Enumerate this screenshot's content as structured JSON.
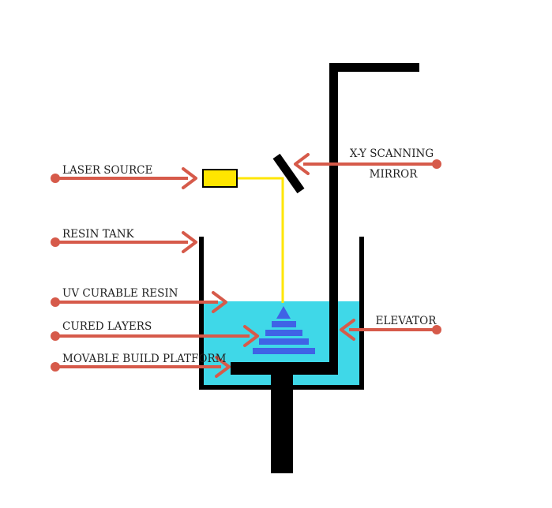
{
  "labels": {
    "laser_source": "LASER SOURCE",
    "resin_tank": "RESIN TANK",
    "uv_curable_resin": "UV CURABLE RESIN",
    "cured_layers": "CURED LAYERS",
    "movable_build_platform": "MOVABLE BUILD PLATFORM",
    "xy_scanning_line1": "X-Y SCANNING",
    "xy_scanning_line2": "MIRROR",
    "elevator": "ELEVATOR"
  },
  "colors": {
    "arrow": "#d65a4a",
    "resin": "#3fd8e8",
    "laser_beam": "#ffe600",
    "laser_box": "#ffe600",
    "cured_layers": "#3f63e6",
    "structure": "#000000"
  }
}
